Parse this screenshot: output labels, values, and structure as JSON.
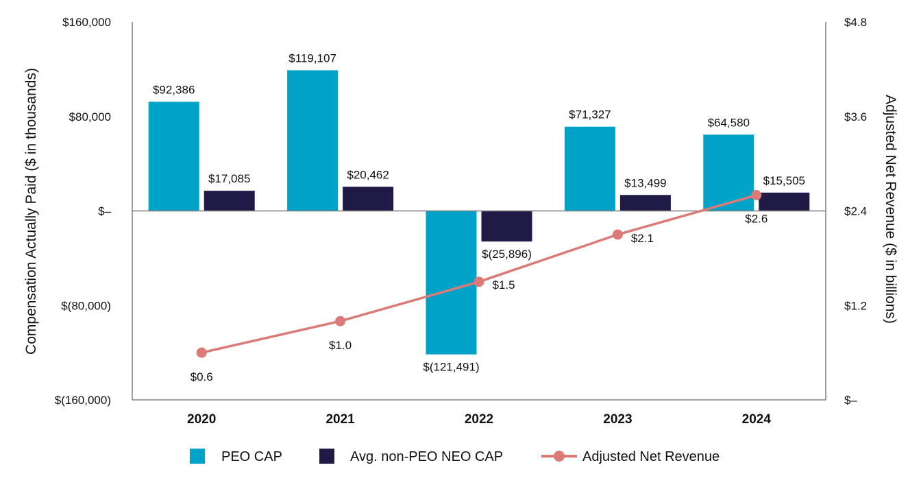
{
  "chart_data": {
    "type": "bar",
    "categories": [
      "2020",
      "2021",
      "2022",
      "2023",
      "2024"
    ],
    "series": [
      {
        "name": "PEO CAP",
        "axis": "left",
        "values": [
          92386,
          119107,
          -121491,
          71327,
          64580
        ],
        "labels": [
          "$92,386",
          "$119,107",
          "$(121,491)",
          "$71,327",
          "$64,580"
        ],
        "color": "#00a3c7"
      },
      {
        "name": "Avg. non-PEO NEO CAP",
        "axis": "left",
        "values": [
          17085,
          20462,
          -25896,
          13499,
          15505
        ],
        "labels": [
          "$17,085",
          "$20,462",
          "$(25,896)",
          "$13,499",
          "$15,505"
        ],
        "color": "#201a47"
      },
      {
        "name": "Adjusted Net Revenue",
        "type": "line",
        "axis": "right",
        "values": [
          0.6,
          1.0,
          1.5,
          2.1,
          2.6
        ],
        "labels": [
          "$0.6",
          "$1.0",
          "$1.5",
          "$2.1",
          "$2.6"
        ],
        "color": "#dc7a78"
      }
    ],
    "ylabel": "Compensation Actually Paid ($ in thousands)",
    "ylim": [
      -160000,
      160000
    ],
    "yticks": [
      160000,
      80000,
      0,
      -80000,
      -160000
    ],
    "ytick_labels": [
      "$160,000",
      "$80,000",
      "$–",
      "$(80,000)",
      "$(160,000)"
    ],
    "y2label": "Adjusted Net Revenue ($ in billions)",
    "y2lim": [
      0,
      4.8
    ],
    "y2ticks": [
      4.8,
      3.6,
      2.4,
      1.2,
      0
    ],
    "y2tick_labels": [
      "$4.8",
      "$3.6",
      "$2.4",
      "$1.2",
      "$–"
    ],
    "legend_position": "bottom",
    "grid": false
  }
}
